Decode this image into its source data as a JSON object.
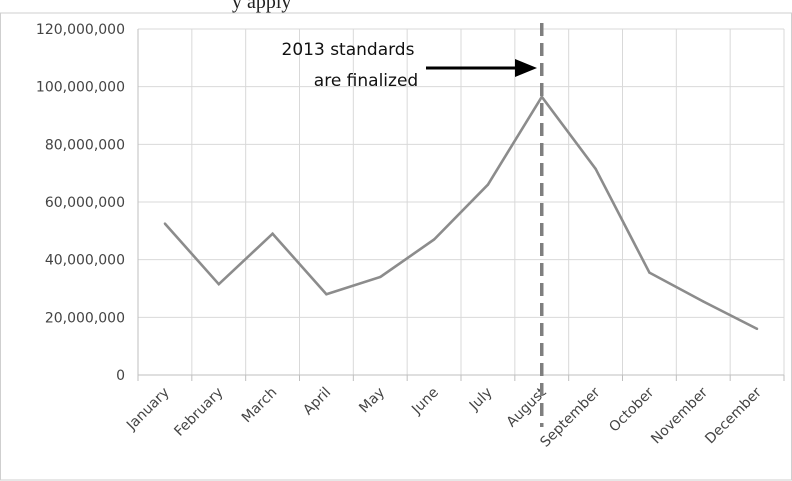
{
  "page": {
    "top_text": "y apply"
  },
  "colors": {
    "line": "#8c8c8c",
    "grid": "#d9d9d9",
    "axis": "#bfbfbf",
    "marker": "#7f7f7f",
    "arrow": "#000000"
  },
  "chart_data": {
    "type": "line",
    "categories": [
      "January",
      "February",
      "March",
      "April",
      "May",
      "June",
      "July",
      "August",
      "September",
      "October",
      "November",
      "December"
    ],
    "series": [
      {
        "values": [
          52500000,
          31500000,
          49000000,
          28000000,
          34000000,
          47000000,
          66000000,
          96500000,
          71500000,
          35500000,
          25500000,
          16000000
        ]
      }
    ],
    "ylim": [
      0,
      120000000
    ],
    "yticks": [
      0,
      20000000,
      40000000,
      60000000,
      80000000,
      100000000,
      120000000
    ],
    "ytick_labels": [
      "0",
      "20,000,000",
      "40,000,000",
      "60,000,000",
      "80,000,000",
      "100,000,000",
      "120,000,000"
    ],
    "grid": true,
    "title": "",
    "xlabel": "",
    "ylabel": "",
    "annotation": {
      "lines": [
        "2013 standards",
        "are finalized"
      ],
      "marker_category": "August",
      "marker_style": "dashed-vertical",
      "arrow": "points right to marker"
    }
  }
}
